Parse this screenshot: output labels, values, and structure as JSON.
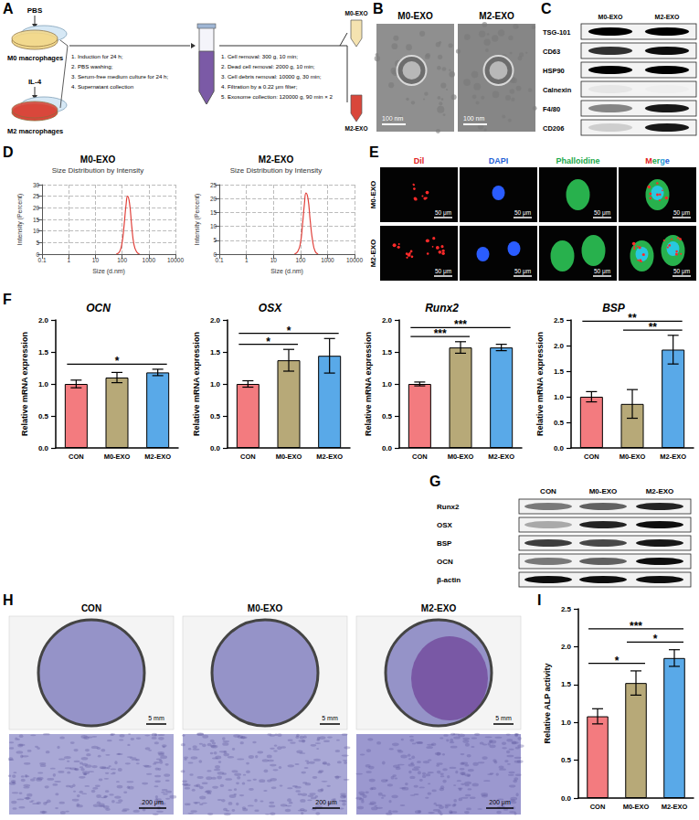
{
  "panels": {
    "A": {
      "letter": "A",
      "m0": {
        "treatment": "PBS",
        "cells": "M0 macrophages",
        "product": "M0-EXO"
      },
      "m2": {
        "treatment": "IL-4",
        "cells": "M2 macrophages",
        "product": "M2-EXO"
      },
      "steps_1": [
        "1. Induction for 24 h;",
        "2. PBS washing;",
        "3. Serum-free medium culture for 24 h;",
        "4. Supernatant collection"
      ],
      "steps_2": [
        "1. Cell removal: 300 g, 10 min;",
        "2. Dead cell removal: 2000 g, 10 min;",
        "3. Cell debris removal: 10000 g, 30 min;",
        "4. Filtration by a 0.22 μm filter;",
        "5. Exosome collection: 120000 g, 90 min × 2"
      ]
    },
    "B": {
      "letter": "B",
      "images": [
        {
          "label": "M0-EXO",
          "scale_bar": "100 nm"
        },
        {
          "label": "M2-EXO",
          "scale_bar": "100 nm"
        }
      ]
    },
    "C": {
      "letter": "C",
      "lanes": [
        "M0-EXO",
        "M2-EXO"
      ],
      "rows": [
        "TSG-101",
        "CD63",
        "HSP90",
        "Calnexin",
        "F4/80",
        "CD206"
      ]
    },
    "D": {
      "letter": "D"
    },
    "E": {
      "letter": "E",
      "columns": [
        "Dil",
        "DAPI",
        "Phalloidine",
        "Merge"
      ],
      "rows": [
        "M0-EXO",
        "M2-EXO"
      ],
      "scale_bar": "50 μm"
    },
    "F": {
      "letter": "F"
    },
    "G": {
      "letter": "G",
      "lanes": [
        "CON",
        "M0-EXO",
        "M2-EXO"
      ],
      "rows": [
        "Runx2",
        "OSX",
        "BSP",
        "OCN",
        "β-actin"
      ]
    },
    "H": {
      "letter": "H",
      "columns": [
        "CON",
        "M0-EXO",
        "M2-EXO"
      ],
      "scale_bar_top": "5 mm",
      "scale_bar_bottom": "200 μm"
    },
    "I": {
      "letter": "I"
    }
  },
  "chart_data": [
    {
      "type": "line",
      "title": "M0-EXO",
      "subtitle": "Size Distribution by Intensity",
      "x_label": "Size (d.nm)",
      "y_label": "Intensity (Percent)",
      "log": "x",
      "x": [
        60,
        80,
        100,
        120,
        140,
        160,
        190,
        230,
        280,
        350,
        450
      ],
      "values": [
        0,
        1,
        5,
        13,
        21,
        25,
        22,
        12,
        4,
        1,
        0
      ],
      "color": "#e0403a",
      "xlim": [
        0.1,
        10000
      ],
      "xticks": [
        0.1,
        1,
        10,
        100,
        1000,
        10000
      ],
      "ylim": [
        0,
        30
      ],
      "yticks": [
        0,
        5,
        10,
        15,
        20,
        25,
        30
      ],
      "grid": true
    },
    {
      "type": "line",
      "title": "M2-EXO",
      "subtitle": "Size Distribution by Intensity",
      "x_label": "Size (d.nm)",
      "y_label": "Intensity (Percent)",
      "log": "x",
      "x": [
        60,
        80,
        100,
        120,
        140,
        160,
        190,
        230,
        280,
        350,
        450
      ],
      "values": [
        0,
        1,
        4,
        11,
        18,
        22,
        20,
        12,
        5,
        1,
        0
      ],
      "color": "#e0403a",
      "xlim": [
        0.1,
        10000
      ],
      "xticks": [
        0.1,
        1,
        10,
        100,
        1000,
        10000
      ],
      "ylim": [
        0,
        25
      ],
      "yticks": [
        0,
        5,
        10,
        15,
        20,
        25
      ],
      "grid": true
    },
    {
      "type": "bar",
      "title": "OCN",
      "y_label": "Relative mRNA expression",
      "categories": [
        "CON",
        "M0-EXO",
        "M2-EXO"
      ],
      "values": [
        1.0,
        1.1,
        1.18
      ],
      "errors": [
        0.06,
        0.08,
        0.05
      ],
      "colors": [
        "#f37b7f",
        "#b7a978",
        "#59a9e8"
      ],
      "ylim": [
        0,
        2.0
      ],
      "yticks": [
        {
          "value": 0,
          "label": "0.0"
        },
        0.5,
        {
          "value": 1,
          "label": "1.0"
        },
        1.5,
        {
          "value": 2,
          "label": "2.0"
        }
      ],
      "grid": false,
      "annotations": [
        {
          "from": "CON",
          "to": "M2-EXO",
          "text": "*"
        }
      ]
    },
    {
      "type": "bar",
      "title": "OSX",
      "y_label": "Relative mRNA expression",
      "categories": [
        "CON",
        "M0-EXO",
        "M2-EXO"
      ],
      "values": [
        1.0,
        1.37,
        1.44
      ],
      "errors": [
        0.05,
        0.17,
        0.27
      ],
      "colors": [
        "#f37b7f",
        "#b7a978",
        "#59a9e8"
      ],
      "ylim": [
        0,
        2.0
      ],
      "yticks": [
        {
          "value": 0,
          "label": "0.0"
        },
        0.5,
        {
          "value": 1,
          "label": "1.0"
        },
        1.5,
        {
          "value": 2,
          "label": "2.0"
        }
      ],
      "grid": false,
      "annotations": [
        {
          "from": "CON",
          "to": "M0-EXO",
          "text": "*"
        },
        {
          "from": "CON",
          "to": "M2-EXO",
          "text": "*"
        }
      ]
    },
    {
      "type": "bar",
      "title": "Runx2",
      "y_label": "Relative mRNA expression",
      "categories": [
        "CON",
        "M0-EXO",
        "M2-EXO"
      ],
      "values": [
        1.0,
        1.57,
        1.57
      ],
      "errors": [
        0.03,
        0.09,
        0.05
      ],
      "colors": [
        "#f37b7f",
        "#b7a978",
        "#59a9e8"
      ],
      "ylim": [
        0,
        2.0
      ],
      "yticks": [
        {
          "value": 0,
          "label": "0.0"
        },
        0.5,
        {
          "value": 1,
          "label": "1.0"
        },
        1.5,
        {
          "value": 2,
          "label": "2.0"
        }
      ],
      "grid": false,
      "annotations": [
        {
          "from": "CON",
          "to": "M0-EXO",
          "text": "***"
        },
        {
          "from": "CON",
          "to": "M2-EXO",
          "text": "***"
        }
      ]
    },
    {
      "type": "bar",
      "title": "BSP",
      "y_label": "Relative mRNA expression",
      "categories": [
        "CON",
        "M0-EXO",
        "M2-EXO"
      ],
      "values": [
        1.0,
        0.86,
        1.92
      ],
      "errors": [
        0.1,
        0.28,
        0.28
      ],
      "colors": [
        "#f37b7f",
        "#b7a978",
        "#59a9e8"
      ],
      "ylim": [
        0,
        2.5
      ],
      "yticks": [
        {
          "value": 0,
          "label": "0.0"
        },
        0.5,
        {
          "value": 1,
          "label": "1.0"
        },
        1.5,
        {
          "value": 2,
          "label": "2.0"
        },
        2.5
      ],
      "grid": false,
      "annotations": [
        {
          "from": "CON",
          "to": "M2-EXO",
          "text": "**"
        },
        {
          "from": "M0-EXO",
          "to": "M2-EXO",
          "text": "**"
        }
      ]
    },
    {
      "type": "bar",
      "y_label": "Relative ALP activity",
      "categories": [
        "CON",
        "M0-EXO",
        "M2-EXO"
      ],
      "values": [
        1.08,
        1.52,
        1.85
      ],
      "errors": [
        0.1,
        0.16,
        0.11
      ],
      "colors": [
        "#f37b7f",
        "#b7a978",
        "#59a9e8"
      ],
      "ylim": [
        0,
        2.5
      ],
      "yticks": [
        {
          "value": 0,
          "label": "0.0"
        },
        0.5,
        {
          "value": 1,
          "label": "1.0"
        },
        1.5,
        {
          "value": 2,
          "label": "2.0"
        },
        2.5
      ],
      "grid": false,
      "annotations": [
        {
          "from": "CON",
          "to": "M0-EXO",
          "text": "*"
        },
        {
          "from": "CON",
          "to": "M2-EXO",
          "text": "***"
        },
        {
          "from": "M0-EXO",
          "to": "M2-EXO",
          "text": "*"
        }
      ]
    }
  ]
}
